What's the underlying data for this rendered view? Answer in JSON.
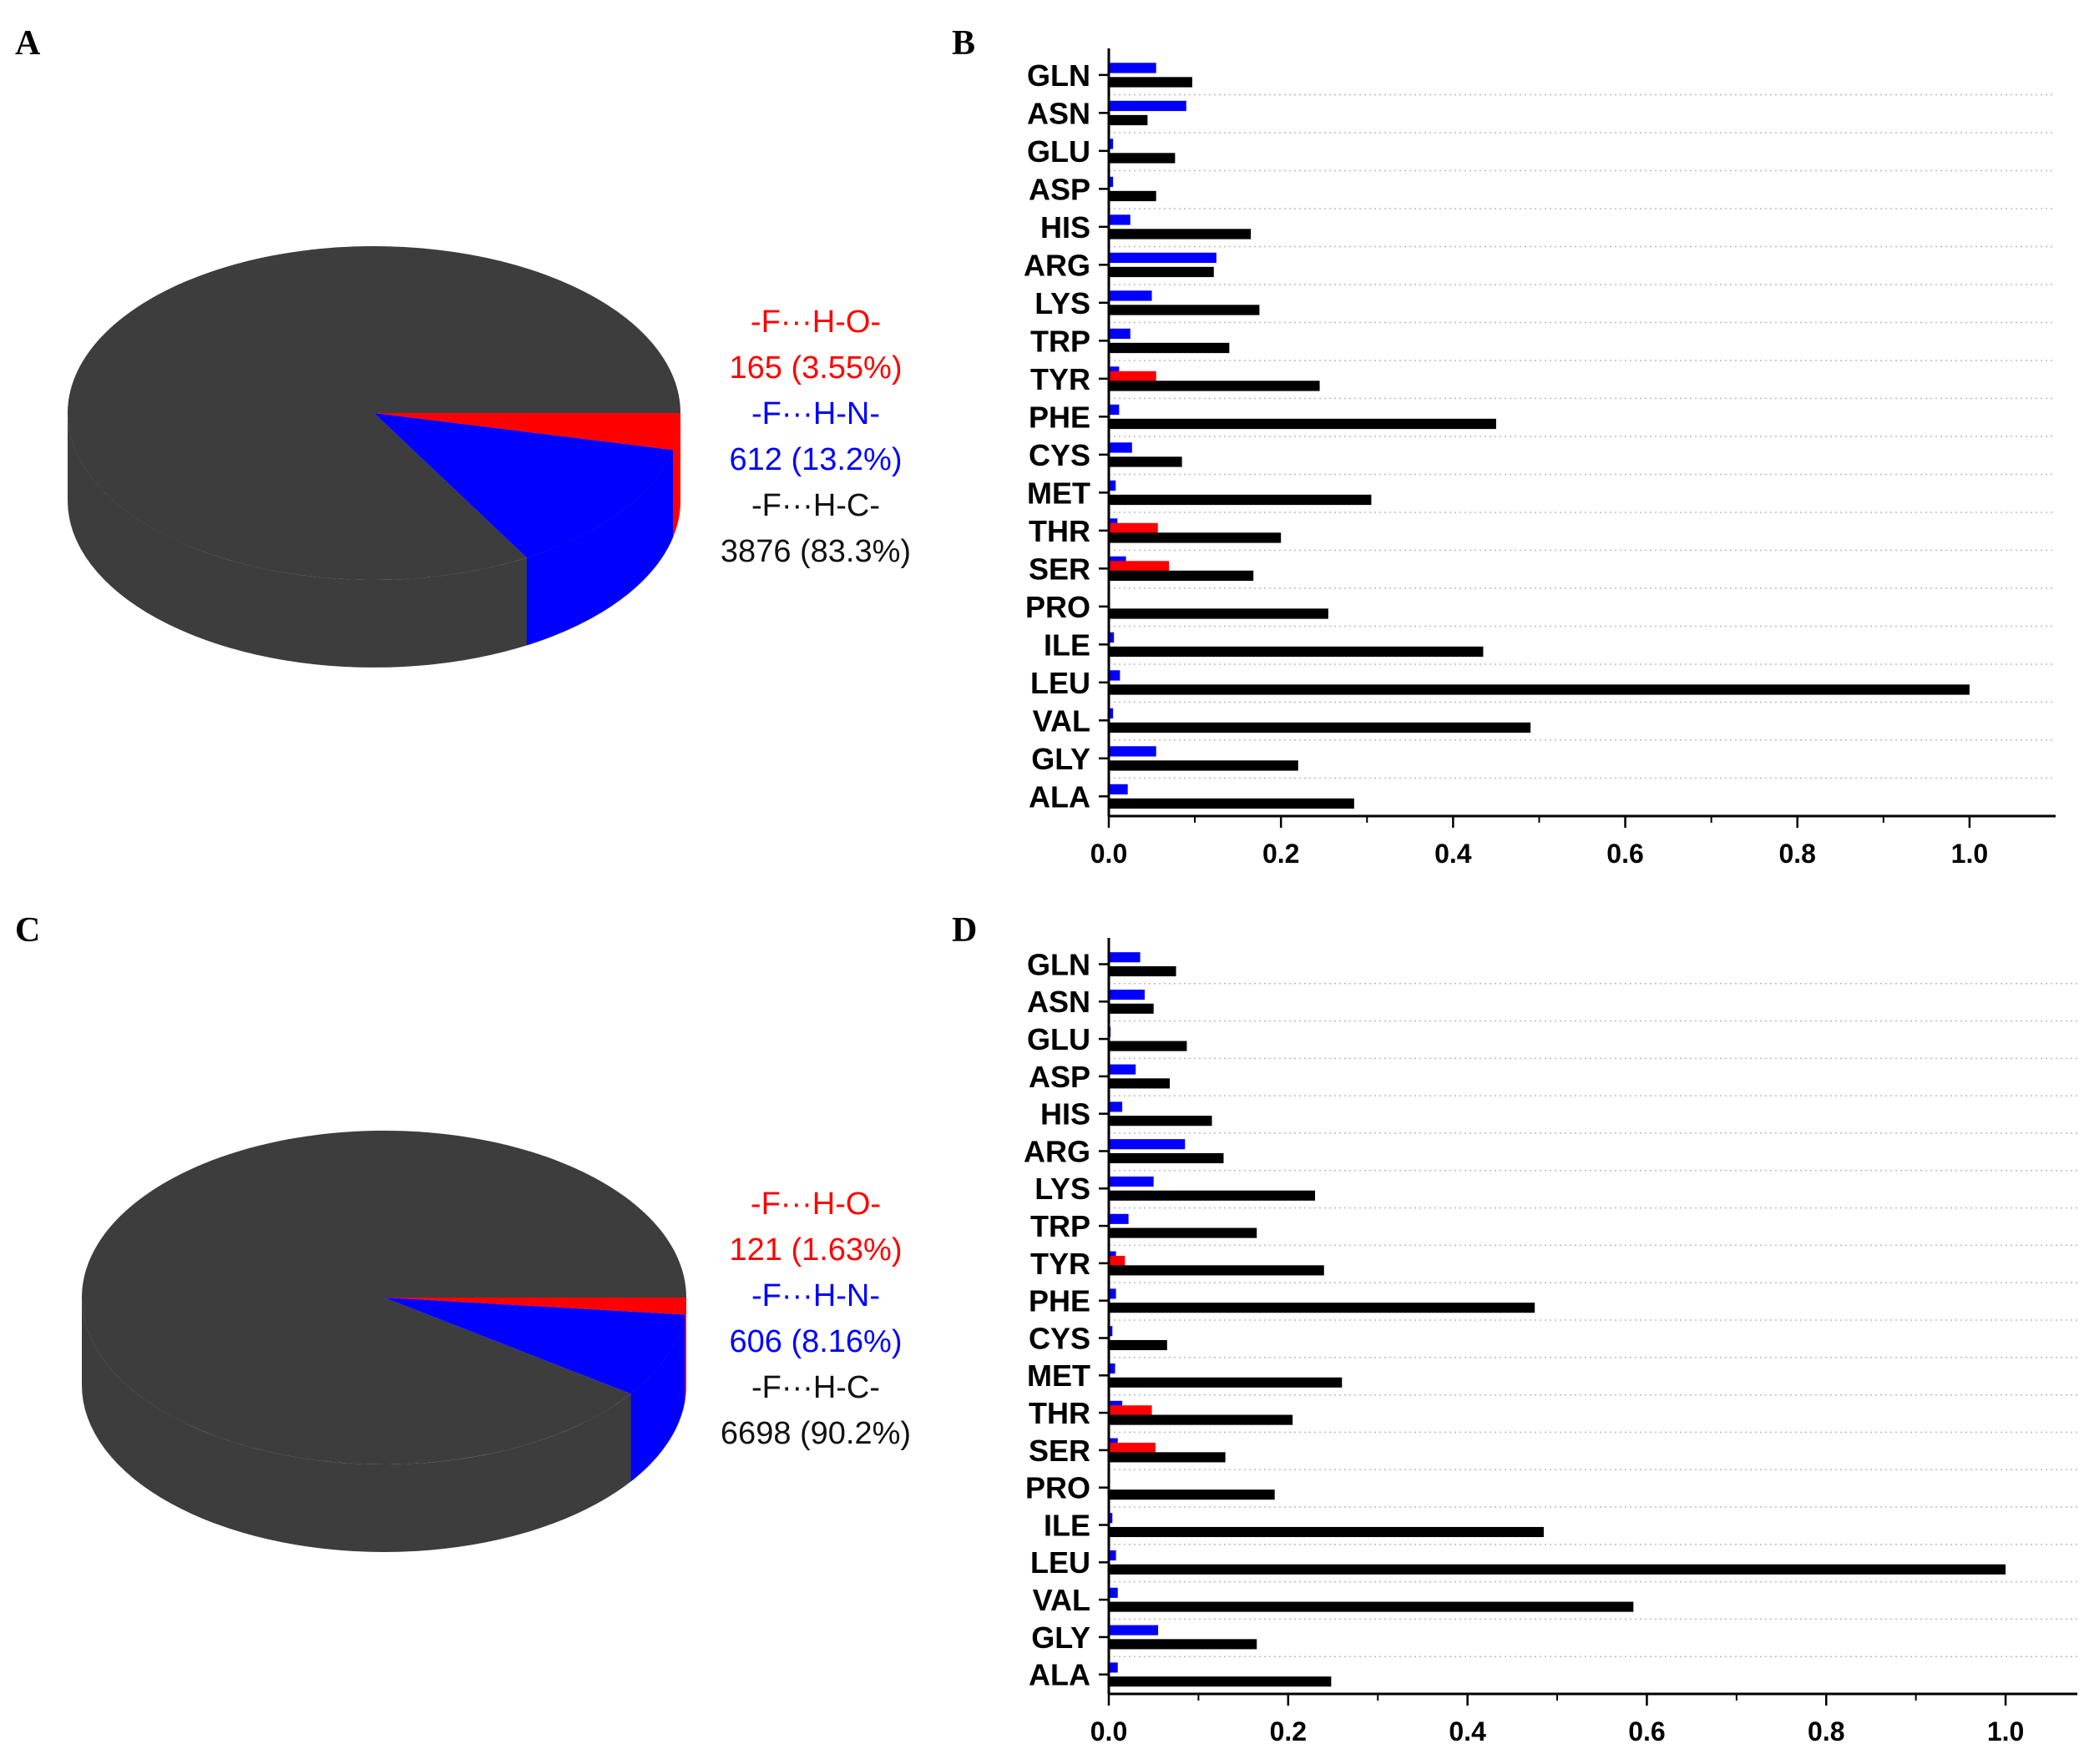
{
  "colors": {
    "hc": "#3d3d3d",
    "hc_bar": "#000000",
    "hn": "#0000ff",
    "ho": "#ff0000",
    "legend_hc": "#111111",
    "grid": "#bbbbbb"
  },
  "chart_data": [
    {
      "panel": "A",
      "type": "pie",
      "style": "3d",
      "slices": [
        {
          "label": "-F···H-O-",
          "value": 165,
          "percent_label": "165 (3.55%)",
          "color": "#ff0000"
        },
        {
          "label": "-F···H-N-",
          "value": 612,
          "percent_label": "612 (13.2%)",
          "color": "#0000ff"
        },
        {
          "label": "-F···H-C-",
          "value": 3876,
          "percent_label": "3876 (83.3%)",
          "color": "#3d3d3d"
        }
      ]
    },
    {
      "panel": "B",
      "type": "bar",
      "orientation": "horizontal",
      "categories": [
        "GLN",
        "ASN",
        "GLU",
        "ASP",
        "HIS",
        "ARG",
        "LYS",
        "TRP",
        "TYR",
        "PHE",
        "CYS",
        "MET",
        "THR",
        "SER",
        "PRO",
        "ILE",
        "LEU",
        "VAL",
        "GLY",
        "ALA"
      ],
      "series": [
        {
          "key": "hn",
          "values": [
            0.055,
            0.09,
            0.005,
            0.005,
            0.025,
            0.125,
            0.05,
            0.025,
            0.012,
            0.012,
            0.027,
            0.008,
            0.01,
            0.02,
            0,
            0.006,
            0.013,
            0.005,
            0.055,
            0.022
          ]
        },
        {
          "key": "ho",
          "values": [
            0,
            0,
            0,
            0,
            0,
            0,
            0,
            0,
            0.055,
            0,
            0,
            0,
            0.057,
            0.07,
            0,
            0,
            0,
            0,
            0,
            0
          ]
        },
        {
          "key": "hc",
          "values": [
            0.097,
            0.045,
            0.077,
            0.055,
            0.165,
            0.122,
            0.175,
            0.14,
            0.245,
            0.45,
            0.085,
            0.305,
            0.2,
            0.168,
            0.255,
            0.435,
            1.0,
            0.49,
            0.22,
            0.285
          ]
        }
      ],
      "xlim": [
        0,
        1.1
      ],
      "xticks": [
        "0.0",
        "0.2",
        "0.4",
        "0.6",
        "0.8",
        "1.0"
      ],
      "xtick_values": [
        0,
        0.2,
        0.4,
        0.6,
        0.8,
        1.0
      ],
      "grid": "dotted horizontal"
    },
    {
      "panel": "C",
      "type": "pie",
      "style": "3d",
      "slices": [
        {
          "label": "-F···H-O-",
          "value": 121,
          "percent_label": "121 (1.63%)",
          "color": "#ff0000"
        },
        {
          "label": "-F···H-N-",
          "value": 606,
          "percent_label": "606 (8.16%)",
          "color": "#0000ff"
        },
        {
          "label": "-F···H-C-",
          "value": 6698,
          "percent_label": "6698 (90.2%)",
          "color": "#3d3d3d"
        }
      ]
    },
    {
      "panel": "D",
      "type": "bar",
      "orientation": "horizontal",
      "categories": [
        "GLN",
        "ASN",
        "GLU",
        "ASP",
        "HIS",
        "ARG",
        "LYS",
        "TRP",
        "TYR",
        "PHE",
        "CYS",
        "MET",
        "THR",
        "SER",
        "PRO",
        "ILE",
        "LEU",
        "VAL",
        "GLY",
        "ALA"
      ],
      "series": [
        {
          "key": "hn",
          "values": [
            0.035,
            0.04,
            0.002,
            0.03,
            0.015,
            0.085,
            0.05,
            0.022,
            0.008,
            0.008,
            0.004,
            0.007,
            0.015,
            0.01,
            0,
            0.004,
            0.008,
            0.01,
            0.055,
            0.01
          ]
        },
        {
          "key": "ho",
          "values": [
            0,
            0,
            0,
            0,
            0,
            0,
            0,
            0,
            0.018,
            0,
            0,
            0,
            0.048,
            0.052,
            0,
            0,
            0,
            0,
            0,
            0
          ]
        },
        {
          "key": "hc",
          "values": [
            0.075,
            0.05,
            0.087,
            0.068,
            0.115,
            0.128,
            0.23,
            0.165,
            0.24,
            0.475,
            0.065,
            0.26,
            0.205,
            0.13,
            0.185,
            0.485,
            1.0,
            0.585,
            0.165,
            0.248
          ]
        }
      ],
      "xlim": [
        0,
        1.08
      ],
      "xticks": [
        "0.0",
        "0.2",
        "0.4",
        "0.6",
        "0.8",
        "1.0"
      ],
      "xtick_values": [
        0,
        0.2,
        0.4,
        0.6,
        0.8,
        1.0
      ],
      "grid": "dotted horizontal"
    }
  ]
}
